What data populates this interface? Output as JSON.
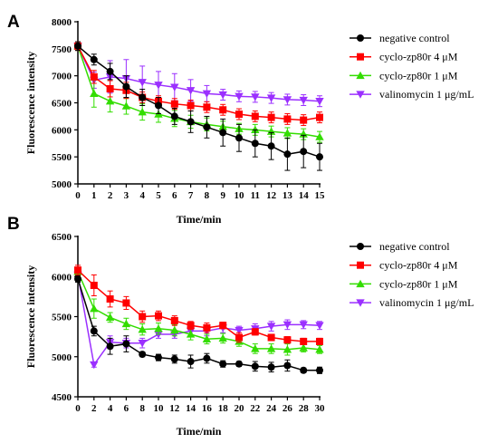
{
  "chart_data": [
    {
      "type": "line",
      "panel": "A",
      "xlabel": "Time/min",
      "ylabel": "Fluorescence intensity",
      "x": [
        0,
        1,
        2,
        3,
        4,
        5,
        6,
        7,
        8,
        9,
        10,
        11,
        12,
        13,
        14,
        15
      ],
      "xticks": [
        "0",
        "1",
        "2",
        "3",
        "4",
        "5",
        "6",
        "7",
        "8",
        "9",
        "10",
        "11",
        "12",
        "13",
        "14",
        "15"
      ],
      "ylim": [
        5000,
        8000
      ],
      "yticks": [
        "5000",
        "5500",
        "6000",
        "6500",
        "7000",
        "7500",
        "8000"
      ],
      "legend_position": "right",
      "series": [
        {
          "name": "negative control",
          "color": "#000000",
          "marker": "circle",
          "values": [
            7550,
            7300,
            7080,
            6800,
            6600,
            6450,
            6250,
            6150,
            6050,
            5950,
            5850,
            5750,
            5700,
            5550,
            5600,
            5500
          ],
          "errors": [
            80,
            100,
            150,
            200,
            150,
            150,
            150,
            200,
            200,
            250,
            250,
            250,
            250,
            300,
            300,
            250
          ]
        },
        {
          "name": "cyclo-zp80r 4 μM",
          "color": "#ff0000",
          "marker": "square",
          "values": [
            7550,
            6980,
            6760,
            6730,
            6600,
            6530,
            6480,
            6450,
            6420,
            6370,
            6290,
            6250,
            6230,
            6200,
            6180,
            6230
          ],
          "errors": [
            80,
            120,
            150,
            150,
            100,
            100,
            100,
            100,
            100,
            100,
            100,
            100,
            100,
            100,
            100,
            100
          ]
        },
        {
          "name": "cyclo-zp80r 1 μM",
          "color": "#33dd00",
          "marker": "triangle-up",
          "values": [
            7550,
            6670,
            6530,
            6440,
            6330,
            6290,
            6210,
            6150,
            6100,
            6060,
            6020,
            6000,
            5970,
            5940,
            5920,
            5870
          ],
          "errors": [
            80,
            250,
            200,
            150,
            150,
            150,
            150,
            120,
            120,
            100,
            100,
            100,
            100,
            100,
            100,
            100
          ]
        },
        {
          "name": "valinomycin 1 μg/mL",
          "color": "#9b30ff",
          "marker": "triangle-down",
          "values": [
            7550,
            6920,
            6980,
            6950,
            6880,
            6830,
            6790,
            6730,
            6670,
            6650,
            6620,
            6610,
            6590,
            6560,
            6550,
            6530
          ],
          "errors": [
            80,
            150,
            300,
            350,
            300,
            250,
            250,
            200,
            150,
            100,
            100,
            100,
            100,
            100,
            100,
            100
          ]
        }
      ]
    },
    {
      "type": "line",
      "panel": "B",
      "xlabel": "Time/min",
      "ylabel": "Fluorescence intensity",
      "x": [
        0,
        2,
        4,
        6,
        8,
        10,
        12,
        14,
        16,
        18,
        20,
        22,
        24,
        26,
        28,
        30
      ],
      "xticks": [
        "0",
        "2",
        "4",
        "6",
        "8",
        "10",
        "12",
        "14",
        "16",
        "18",
        "20",
        "22",
        "24",
        "26",
        "28",
        "30"
      ],
      "ylim": [
        4500,
        6500
      ],
      "yticks": [
        "4500",
        "5000",
        "5500",
        "6000",
        "6500"
      ],
      "legend_position": "right",
      "series": [
        {
          "name": "negative control",
          "color": "#000000",
          "marker": "circle",
          "values": [
            5970,
            5320,
            5130,
            5160,
            5030,
            4990,
            4970,
            4940,
            4980,
            4910,
            4910,
            4880,
            4870,
            4890,
            4830,
            4830
          ],
          "errors": [
            40,
            60,
            100,
            100,
            30,
            40,
            50,
            80,
            60,
            40,
            30,
            60,
            60,
            70,
            30,
            40
          ]
        },
        {
          "name": "cyclo-zp80r 4 μM",
          "color": "#ff0000",
          "marker": "square",
          "values": [
            6080,
            5890,
            5720,
            5670,
            5500,
            5510,
            5450,
            5390,
            5360,
            5390,
            5240,
            5310,
            5240,
            5210,
            5190,
            5190
          ],
          "errors": [
            60,
            130,
            100,
            80,
            70,
            60,
            60,
            50,
            60,
            40,
            60,
            40,
            40,
            40,
            40,
            40
          ]
        },
        {
          "name": "cyclo-zp80r 1 μM",
          "color": "#33dd00",
          "marker": "triangle-up",
          "values": [
            6060,
            5600,
            5490,
            5410,
            5340,
            5350,
            5330,
            5280,
            5220,
            5230,
            5190,
            5100,
            5100,
            5090,
            5110,
            5090
          ],
          "errors": [
            40,
            120,
            60,
            70,
            70,
            70,
            70,
            70,
            60,
            60,
            60,
            60,
            60,
            70,
            50,
            50
          ]
        },
        {
          "name": "valinomycin 1 μg/mL",
          "color": "#9b30ff",
          "marker": "triangle-down",
          "values": [
            6020,
            4900,
            5180,
            5170,
            5170,
            5280,
            5280,
            5320,
            5320,
            5360,
            5330,
            5350,
            5380,
            5400,
            5400,
            5390
          ],
          "errors": [
            40,
            30,
            80,
            60,
            60,
            50,
            50,
            60,
            60,
            60,
            50,
            60,
            60,
            60,
            50,
            50
          ]
        }
      ]
    }
  ]
}
